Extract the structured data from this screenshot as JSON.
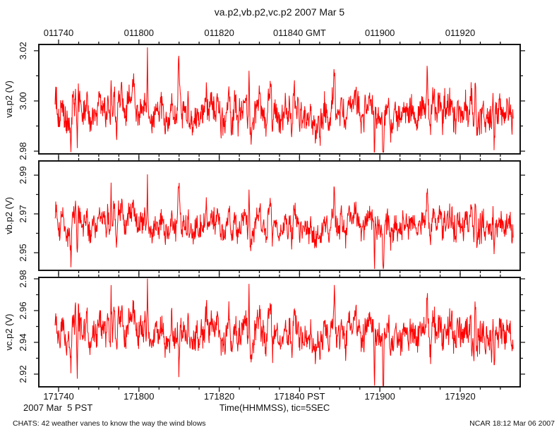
{
  "chart_data": {
    "type": "line",
    "title": "va.p2,vb.p2,vc.p2 2007 Mar 5",
    "grid": false,
    "series_color": "#ff0000",
    "frame_color": "#141414",
    "x_axis": {
      "caption": "Time(HHMMSS), tic=5SEC",
      "date_label": "2007 Mar  5 PST",
      "major_tick_sec": 20,
      "minor_tick_sec": 5,
      "range_sec": [
        -5,
        115
      ],
      "top_ticks": [
        {
          "t": 0,
          "label": "011740"
        },
        {
          "t": 20,
          "label": "011800"
        },
        {
          "t": 40,
          "label": "011820"
        },
        {
          "t": 60,
          "label": "011840 GMT"
        },
        {
          "t": 80,
          "label": "011900"
        },
        {
          "t": 100,
          "label": "011920"
        }
      ],
      "bottom_ticks": [
        {
          "t": 0,
          "label": "171740"
        },
        {
          "t": 20,
          "label": "171800"
        },
        {
          "t": 40,
          "label": "171820"
        },
        {
          "t": 60,
          "label": "171840 PST"
        },
        {
          "t": 80,
          "label": "171900"
        },
        {
          "t": 100,
          "label": "171920"
        }
      ]
    },
    "panels": [
      {
        "name": "va.p2",
        "ylabel": "va.p2 (V)",
        "ylim": [
          2.9789,
          3.0225
        ],
        "yticks": [
          {
            "v": 2.98,
            "label": "2.98"
          },
          {
            "v": 3.0,
            "label": "3.00"
          },
          {
            "v": 3.02,
            "label": "3.02"
          }
        ],
        "yticks_minor": [
          2.99,
          3.01
        ],
        "mean": 2.9955,
        "half_range": 0.0105,
        "up_bias": 0.62
      },
      {
        "name": "vb.p2",
        "ylabel": "vb.p2 (V)",
        "ylim": [
          2.9409,
          2.9973
        ],
        "yticks": [
          {
            "v": 2.95,
            "label": "2.95"
          },
          {
            "v": 2.97,
            "label": "2.97"
          },
          {
            "v": 2.99,
            "label": "2.99"
          }
        ],
        "yticks_minor": [
          2.96,
          2.98
        ],
        "mean": 2.9645,
        "half_range": 0.0115,
        "up_bias": 0.58
      },
      {
        "name": "vc.p2",
        "ylabel": "vc.p2 (V)",
        "ylim": [
          2.912,
          2.9809
        ],
        "yticks": [
          {
            "v": 2.92,
            "label": "2.92"
          },
          {
            "v": 2.94,
            "label": "2.94"
          },
          {
            "v": 2.96,
            "label": "2.96"
          },
          {
            "v": 2.98,
            "label": "2.98"
          }
        ],
        "yticks_minor": [
          2.93,
          2.95,
          2.97
        ],
        "mean": 2.9462,
        "half_range": 0.0165,
        "up_bias": 0.45
      }
    ],
    "noise_seed": 73,
    "n_points": 1300
  },
  "footer": {
    "left": "CHATS: 42 weather vanes to know the way the wind blows",
    "right": "NCAR 18:12 Mar 06 2007"
  }
}
